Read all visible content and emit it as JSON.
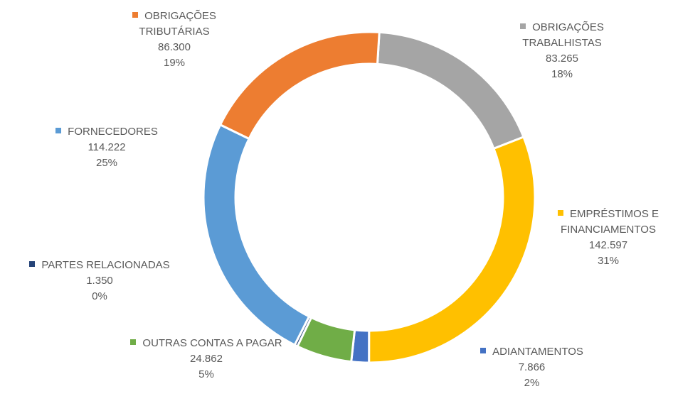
{
  "chart_data": {
    "type": "donut",
    "categories": [
      "OBRIGAÇÕES TRABALHISTAS",
      "EMPRÉSTIMOS E FINANCIAMENTOS",
      "ADIANTAMENTOS",
      "OUTRAS CONTAS A PAGAR",
      "PARTES RELACIONADAS",
      "FORNECEDORES",
      "OBRIGAÇÕES TRIBUTÁRIAS"
    ],
    "values": [
      83265,
      142597,
      7866,
      24862,
      1350,
      114222,
      86300
    ],
    "value_labels": [
      "83.265",
      "142.597",
      "7.866",
      "24.862",
      "1.350",
      "114.222",
      "86.300"
    ],
    "percent_labels": [
      "18%",
      "31%",
      "2%",
      "5%",
      "0%",
      "25%",
      "19%"
    ],
    "colors": [
      "#a5a5a5",
      "#ffc000",
      "#4472c4",
      "#70ad47",
      "#264478",
      "#5b9bd5",
      "#ed7d31"
    ]
  }
}
